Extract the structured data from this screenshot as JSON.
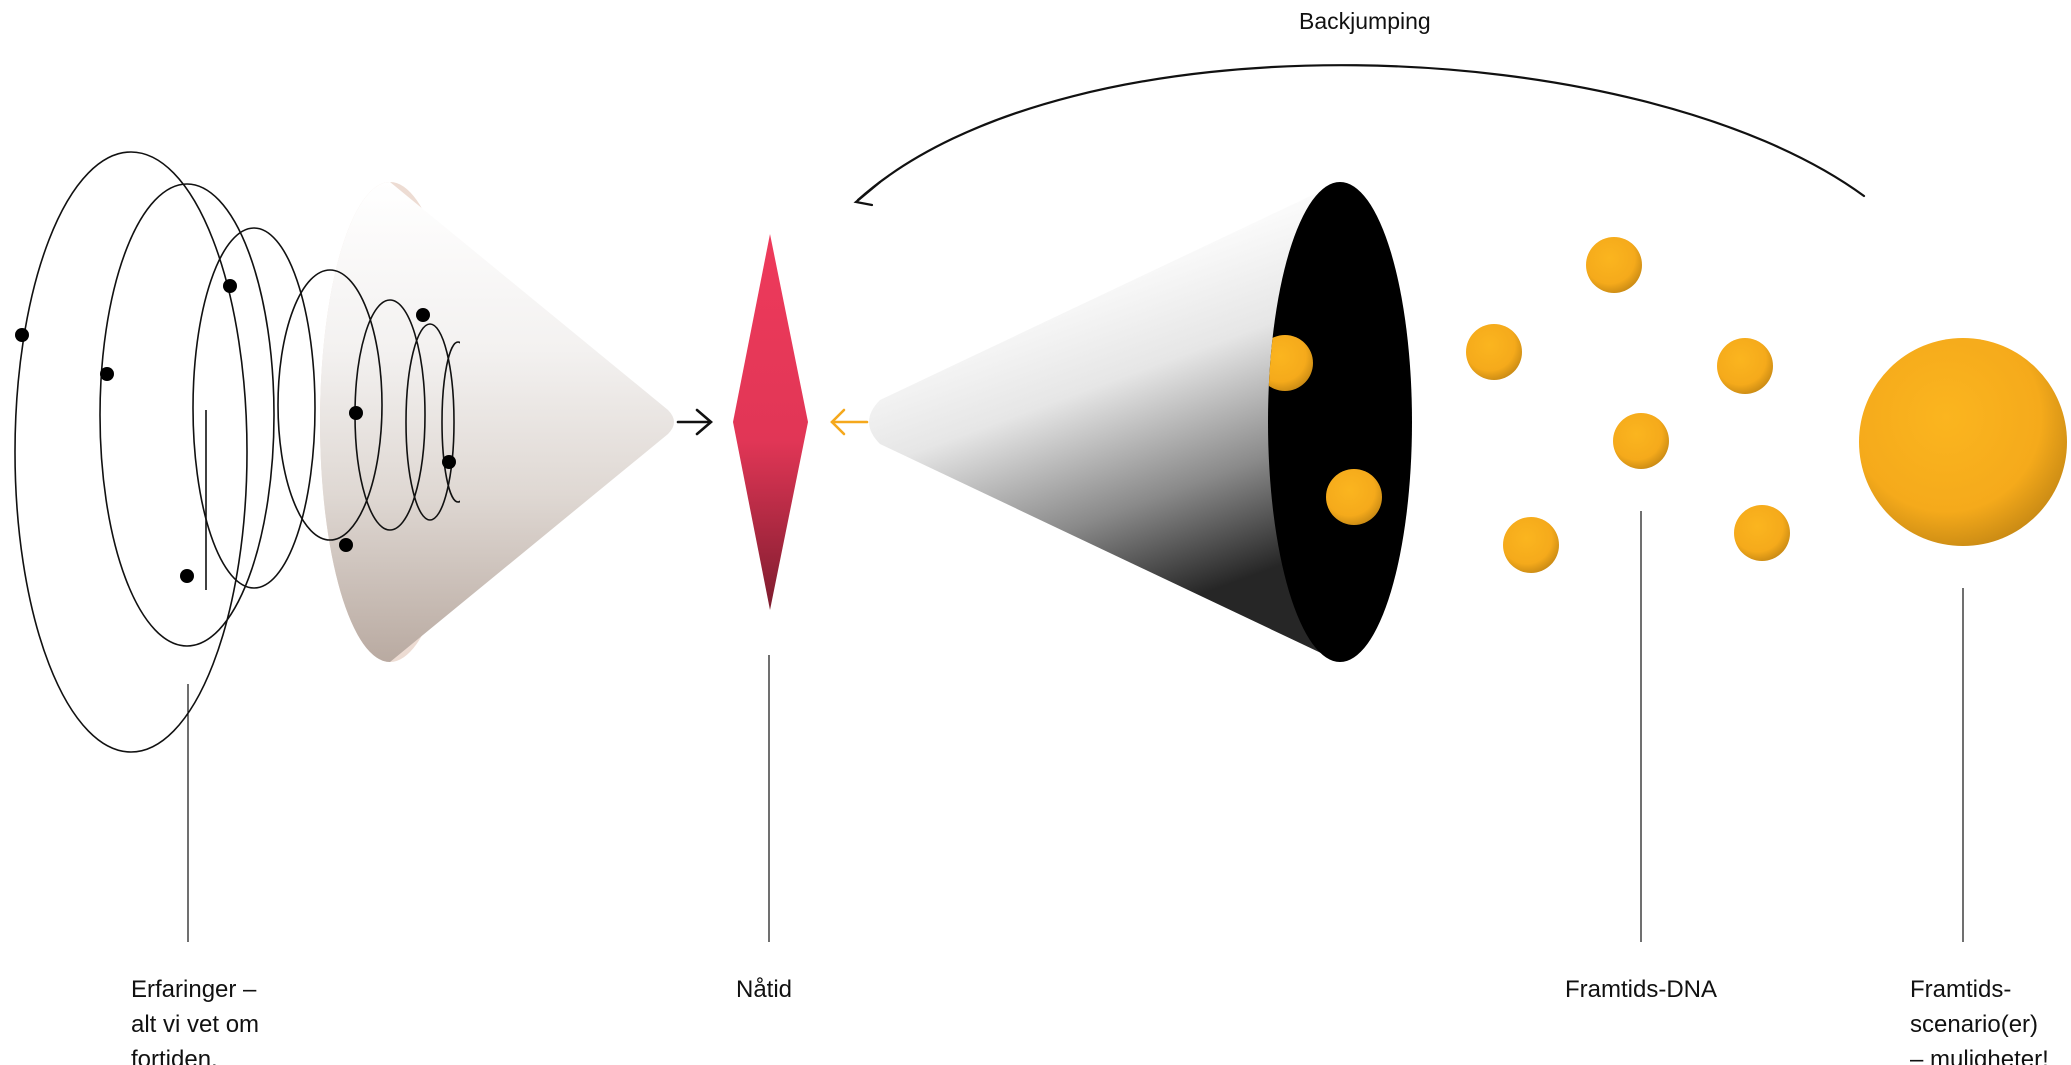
{
  "labels": {
    "past": [
      "Erfaringer –",
      "alt vi vet om",
      "fortiden."
    ],
    "now": "Nåtid",
    "dna": "Framtids-DNA",
    "scenarios": [
      "Framtids-",
      "scenario(er)",
      "– muligheter!"
    ],
    "backjumping": "Backjumping"
  },
  "colors": {
    "line": "#111111",
    "past_cone_base": "#eddcd3",
    "now_diamond": "#e83a5a",
    "now_diamond_dark": "#8f1f33",
    "orange": "#f5ab1b",
    "orange_arrow": "#f5a81c",
    "future_cone_mouth": "#000000"
  }
}
